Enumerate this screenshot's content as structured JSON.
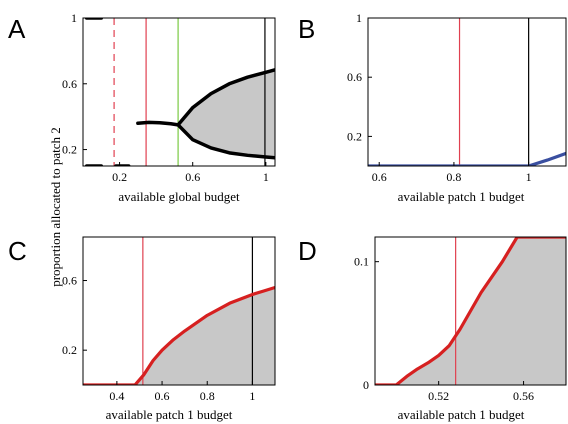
{
  "chart_data": [
    {
      "panel": "A",
      "type": "line",
      "xlabel": "available global budget",
      "ylabel": "proportion allocated to patch 2",
      "xlim": [
        0.0,
        1.05
      ],
      "ylim": [
        0.1,
        1.0
      ],
      "xticks": [
        0.2,
        0.6,
        1
      ],
      "xtick_labels": [
        "0.2",
        "0.6",
        "1"
      ],
      "yticks": [
        0.2,
        0.6,
        1
      ],
      "ytick_labels": [
        "0.2",
        "0.6",
        "1"
      ],
      "series": [
        {
          "role": "upper-branch",
          "color": "#000000",
          "x": [
            0.02,
            0.1
          ],
          "y": [
            1.0,
            1.0
          ]
        },
        {
          "role": "lower-branch-1",
          "color": "#000000",
          "x": [
            0.02,
            0.1
          ],
          "y": [
            0.1,
            0.1
          ]
        },
        {
          "role": "lower-branch-2",
          "color": "#000000",
          "x": [
            0.18,
            0.25
          ],
          "y": [
            0.1,
            0.1
          ]
        },
        {
          "role": "middle-branch",
          "color": "#000000",
          "x": [
            0.3,
            0.36,
            0.42,
            0.48,
            0.52
          ],
          "y": [
            0.36,
            0.365,
            0.363,
            0.357,
            0.35
          ]
        },
        {
          "role": "fork-upper",
          "color": "#000000",
          "x": [
            0.52,
            0.6,
            0.7,
            0.8,
            0.9,
            1.0,
            1.05
          ],
          "y": [
            0.35,
            0.455,
            0.54,
            0.6,
            0.64,
            0.67,
            0.685
          ]
        },
        {
          "role": "fork-lower",
          "color": "#000000",
          "x": [
            0.52,
            0.6,
            0.7,
            0.8,
            0.9,
            1.0,
            1.05
          ],
          "y": [
            0.35,
            0.26,
            0.21,
            0.18,
            0.165,
            0.155,
            0.15
          ]
        }
      ],
      "vlines": [
        {
          "x": 0.17,
          "color": "#e04050",
          "style": "dashed"
        },
        {
          "x": 0.345,
          "color": "#e04050",
          "style": "solid"
        },
        {
          "x": 0.52,
          "color": "#7ac943",
          "style": "solid"
        },
        {
          "x": 0.995,
          "color": "#000000",
          "style": "solid"
        }
      ],
      "shade": "between fork-upper and fork-lower",
      "shade_color": "#c8c8c8"
    },
    {
      "panel": "B",
      "type": "line",
      "xlabel": "available patch 1 budget",
      "ylabel": "",
      "xlim": [
        0.57,
        1.1
      ],
      "ylim": [
        0.0,
        1.0
      ],
      "xticks": [
        0.6,
        0.8,
        1
      ],
      "xtick_labels": [
        "0.6",
        "0.8",
        "1"
      ],
      "yticks": [
        0.2,
        0.6,
        1
      ],
      "ytick_labels": [
        "0.2",
        "0.6",
        "1"
      ],
      "series": [
        {
          "role": "allocation",
          "color": "#3a4fa0",
          "x": [
            0.57,
            1.0,
            1.05,
            1.1
          ],
          "y": [
            0.0,
            0.0,
            0.04,
            0.085
          ]
        }
      ],
      "vlines": [
        {
          "x": 0.815,
          "color": "#e04050",
          "style": "solid"
        },
        {
          "x": 1.0,
          "color": "#000000",
          "style": "solid"
        }
      ]
    },
    {
      "panel": "C",
      "type": "area",
      "xlabel": "available patch 1 budget",
      "ylabel": "",
      "xlim": [
        0.25,
        1.1
      ],
      "ylim": [
        0.0,
        0.85
      ],
      "xticks": [
        0.4,
        0.6,
        0.8,
        1
      ],
      "xtick_labels": [
        "0.4",
        "0.6",
        "0.8",
        "1"
      ],
      "yticks": [
        0.2,
        0.6
      ],
      "ytick_labels": [
        "0.2",
        "0.6"
      ],
      "series": [
        {
          "role": "allocation",
          "color": "#d62020",
          "x": [
            0.25,
            0.48,
            0.5,
            0.52,
            0.56,
            0.6,
            0.65,
            0.7,
            0.8,
            0.9,
            1.0,
            1.05,
            1.1
          ],
          "y": [
            0.0,
            0.0,
            0.03,
            0.06,
            0.14,
            0.2,
            0.26,
            0.31,
            0.4,
            0.47,
            0.52,
            0.54,
            0.56
          ]
        }
      ],
      "vlines": [
        {
          "x": 0.515,
          "color": "#e04050",
          "style": "solid"
        },
        {
          "x": 1.0,
          "color": "#000000",
          "style": "solid"
        }
      ],
      "shade": "under allocation",
      "shade_color": "#c8c8c8"
    },
    {
      "panel": "D",
      "type": "area",
      "xlabel": "available patch 1 budget",
      "ylabel": "",
      "xlim": [
        0.49,
        0.58
      ],
      "ylim": [
        0.0,
        0.12
      ],
      "xticks": [
        0.52,
        0.56
      ],
      "xtick_labels": [
        "0.52",
        "0.56"
      ],
      "yticks": [
        0,
        0.1
      ],
      "ytick_labels": [
        "0",
        "0.1"
      ],
      "series": [
        {
          "role": "allocation",
          "color": "#d62020",
          "x": [
            0.49,
            0.5,
            0.505,
            0.51,
            0.515,
            0.52,
            0.525,
            0.53,
            0.54,
            0.55,
            0.557,
            0.58
          ],
          "y": [
            0.0,
            0.0,
            0.007,
            0.013,
            0.018,
            0.024,
            0.032,
            0.045,
            0.075,
            0.1,
            0.12,
            0.12
          ]
        }
      ],
      "vlines": [
        {
          "x": 0.528,
          "color": "#e04050",
          "style": "solid"
        }
      ],
      "shade": "under allocation",
      "shade_color": "#c8c8c8"
    }
  ]
}
